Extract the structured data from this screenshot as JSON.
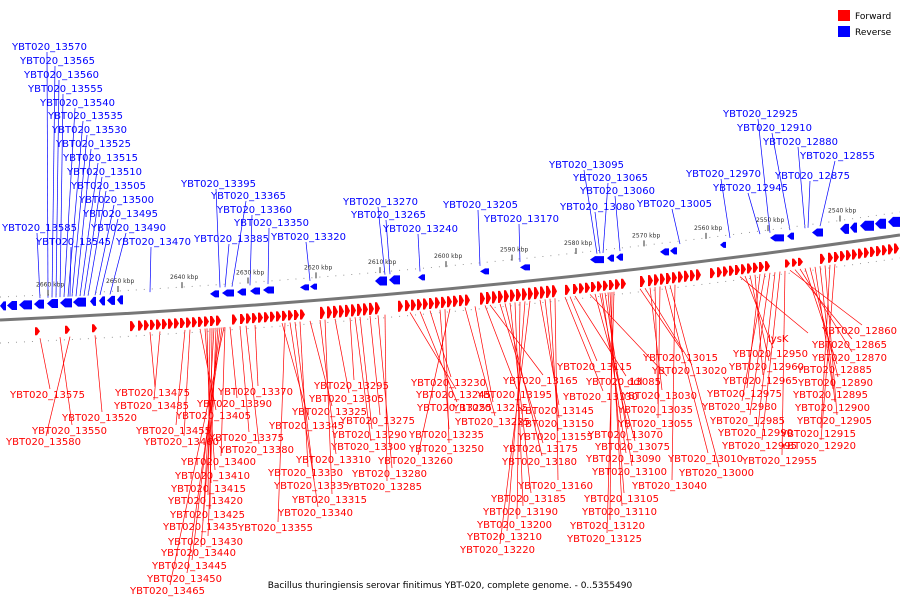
{
  "legend": {
    "forward_label": "Forward",
    "reverse_label": "Reverse",
    "forward_color": "#ff0000",
    "reverse_color": "#0000ff"
  },
  "caption": "Bacillus thuringiensis serovar finitimus YBT-020, complete genome. - 0..5355490",
  "ticks": [
    "2540 kbp",
    "2550 kbp",
    "2560 kbp",
    "2570 kbp",
    "2580 kbp",
    "2590 kbp",
    "2600 kbp",
    "2610 kbp",
    "2620 kbp",
    "2630 kbp",
    "2640 kbp",
    "2650 kbp",
    "2660 kbp"
  ],
  "reverse_labels": [
    "YBT020_13570",
    "YBT020_13565",
    "YBT020_13560",
    "YBT020_13555",
    "YBT020_13540",
    "YBT020_13535",
    "YBT020_13530",
    "YBT020_13525",
    "YBT020_13515",
    "YBT020_13510",
    "YBT020_13505",
    "YBT020_13500",
    "YBT020_13495",
    "YBT020_13490",
    "YBT020_13470",
    "YBT020_13585",
    "YBT020_13545",
    "YBT020_13395",
    "YBT020_13365",
    "YBT020_13360",
    "YBT020_13350",
    "YBT020_13385",
    "YBT020_13320",
    "YBT020_13270",
    "YBT020_13265",
    "YBT020_13240",
    "YBT020_13205",
    "YBT020_13170",
    "YBT020_13095",
    "YBT020_13065",
    "YBT020_13060",
    "YBT020_13080",
    "YBT020_13005",
    "YBT020_12925",
    "YBT020_12910",
    "YBT020_12880",
    "YBT020_12855",
    "YBT020_12970",
    "YBT020_12945",
    "YBT020_12875"
  ],
  "forward_labels": [
    "YBT020_13575",
    "YBT020_13550",
    "YBT020_13580",
    "YBT020_13520",
    "YBT020_13475",
    "YBT020_13485",
    "YBT020_13455",
    "YBT020_13460",
    "YBT020_13405",
    "YBT020_13410",
    "YBT020_13415",
    "YBT020_13420",
    "YBT020_13425",
    "YBT020_13435",
    "YBT020_13430",
    "YBT020_13440",
    "YBT020_13445",
    "YBT020_13450",
    "YBT020_13465",
    "YBT020_13400",
    "YBT020_13390",
    "YBT020_13375",
    "YBT020_13380",
    "YBT020_13370",
    "YBT020_13345",
    "YBT020_13355",
    "YBT020_13340",
    "YBT020_13335",
    "YBT020_13330",
    "YBT020_13325",
    "YBT020_13310",
    "YBT020_13315",
    "YBT020_13305",
    "YBT020_13295",
    "YBT020_13300",
    "YBT020_13290",
    "YBT020_13275",
    "YBT020_13280",
    "YBT020_13285",
    "YBT020_13245",
    "YBT020_13255",
    "YBT020_13230",
    "YBT020_13235",
    "YBT020_13250",
    "YBT020_13260",
    "YBT020_13225",
    "YBT020_13215",
    "YBT020_13195",
    "YBT020_13165",
    "YBT020_13175",
    "YBT020_13180",
    "YBT020_13185",
    "YBT020_13190",
    "YBT020_13200",
    "YBT020_13210",
    "YBT020_13220",
    "YBT020_13145",
    "YBT020_13150",
    "YBT020_13155",
    "YBT020_13160",
    "YBT020_13130",
    "YBT020_13115",
    "YBT020_13085",
    "ddl",
    "YBT020_13075",
    "YBT020_13070",
    "YBT020_13090",
    "YBT020_13100",
    "YBT020_13105",
    "YBT020_13110",
    "YBT020_13120",
    "YBT020_13125",
    "YBT020_13015",
    "YBT020_13020",
    "YBT020_13030",
    "YBT020_13035",
    "YBT020_13055",
    "YBT020_13010",
    "YBT020_13000",
    "YBT020_13040",
    "lysK",
    "YBT020_12950",
    "YBT020_12960",
    "YBT020_12965",
    "YBT020_12975",
    "YBT020_12980",
    "YBT020_12985",
    "YBT020_12990",
    "YBT020_12995",
    "YBT020_12955",
    "YBT020_12860",
    "YBT020_12865",
    "YBT020_12870",
    "YBT020_12885",
    "YBT020_12890",
    "YBT020_12895",
    "YBT020_12900",
    "YBT020_12905",
    "YBT020_12915",
    "YBT020_12920"
  ]
}
